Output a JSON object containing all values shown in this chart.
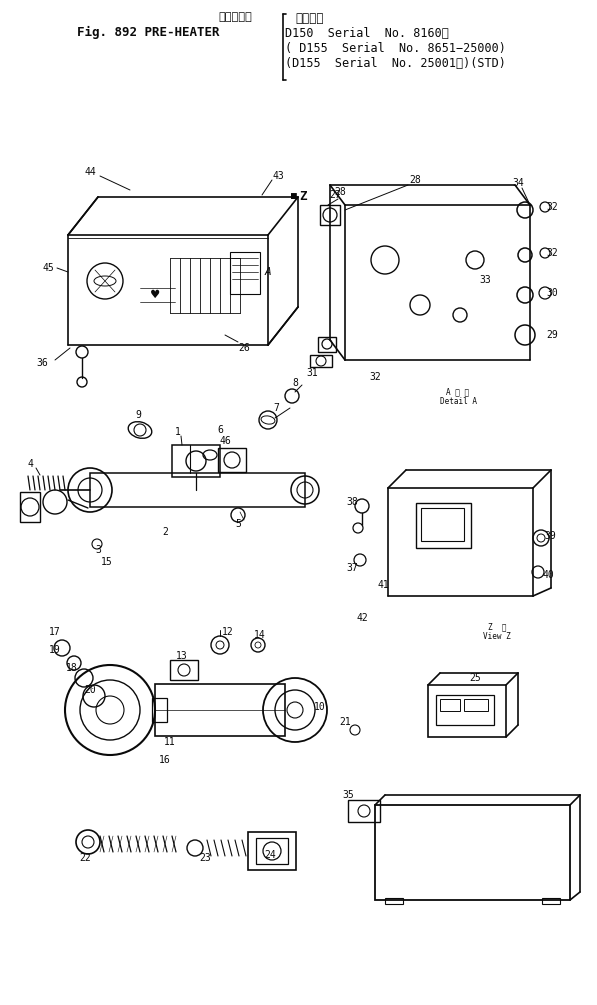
{
  "bg_color": "#ffffff",
  "fg_color": "#000000",
  "dc": "#0a0a0a",
  "figsize": [
    5.97,
    10.05
  ],
  "dpi": 100,
  "header": {
    "japanese_title": "プレヒータ",
    "fig_text": "Fig. 892 PRE-HEATER",
    "serial1": "適用号機",
    "serial2": "D150  Serial  No. 8160～",
    "serial3": "( D155  Serial  No. 8651−25000)",
    "serial4": "(D155  Serial  No. 25001～)(STD)"
  }
}
